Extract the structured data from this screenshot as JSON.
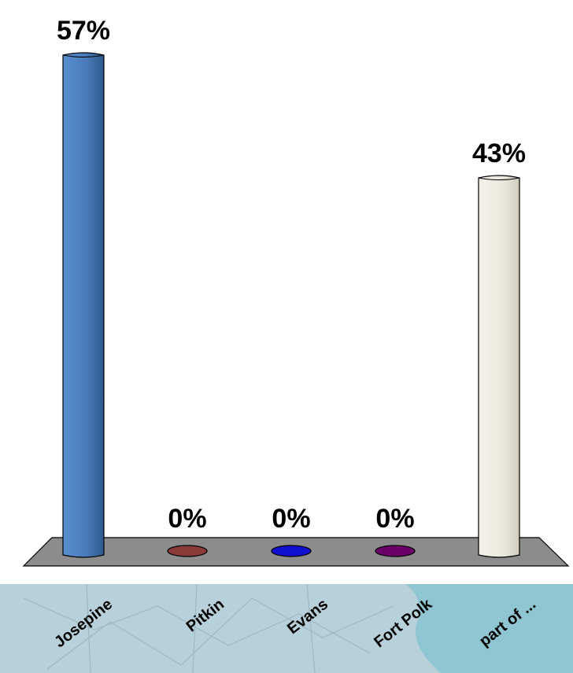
{
  "chart_data": {
    "type": "bar",
    "categories": [
      "Josepine",
      "Pitkin",
      "Evans",
      "Fort Polk",
      "part of ..."
    ],
    "values": [
      57,
      0,
      0,
      0,
      43
    ],
    "value_labels": [
      "57%",
      "0%",
      "0%",
      "0%",
      "43%"
    ],
    "unit": "%",
    "ylim": [
      0,
      60
    ],
    "grid": false,
    "legend": "none",
    "colors": [
      "#4f81bd",
      "#8b3a3a",
      "#1010d0",
      "#6a006a",
      "#eeebe0"
    ]
  },
  "background": {
    "map_color": "#a9c6d2",
    "water_color": "#8fc6d2",
    "floor_color": "#8c8c8c"
  }
}
